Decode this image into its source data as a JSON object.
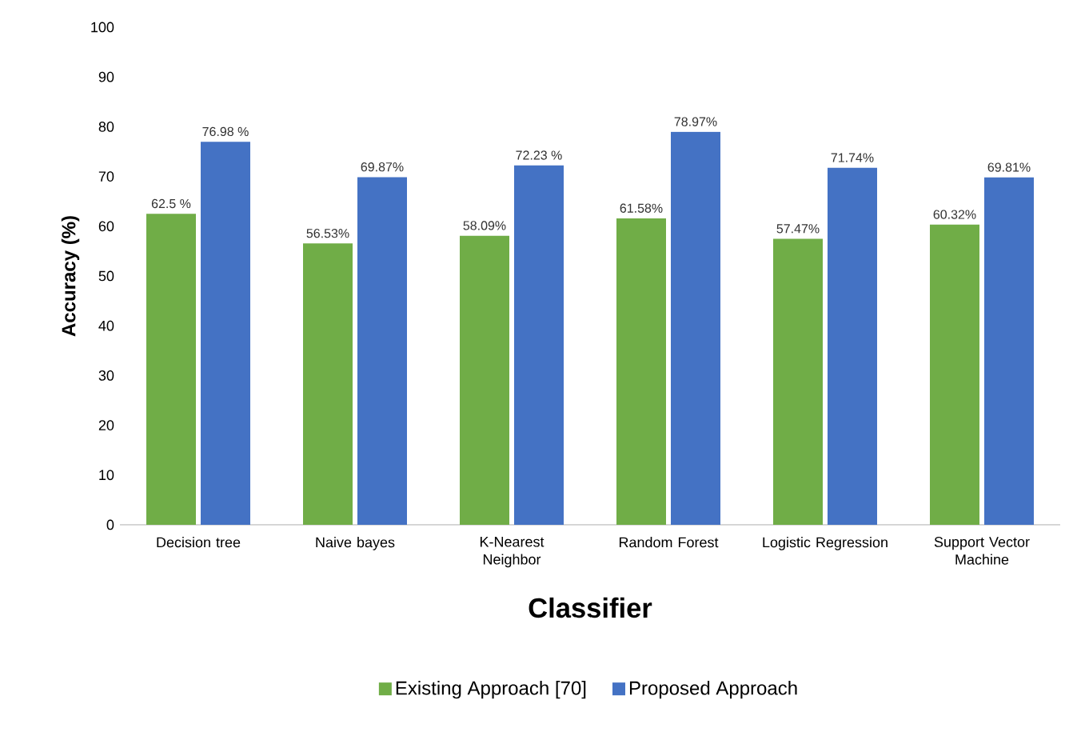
{
  "chart_data": {
    "type": "bar",
    "xlabel": "Classifier",
    "ylabel": "Accuracy (%)",
    "categories": [
      "Decision tree",
      "Naive bayes",
      "K-Nearest Neighbor",
      "Random Forest",
      "Logistic Regression",
      "Support Vector Machine"
    ],
    "series": [
      {
        "name": "Existing Approach [70]",
        "color": "#70ad47",
        "values": [
          62.5,
          56.53,
          58.09,
          61.58,
          57.47,
          60.32
        ],
        "value_labels": [
          "62.5 %",
          "56.53%",
          "58.09%",
          "61.58%",
          "57.47%",
          "60.32%"
        ]
      },
      {
        "name": "Proposed Approach",
        "color": "#4472c4",
        "values": [
          76.98,
          69.87,
          72.23,
          78.97,
          71.74,
          69.81
        ],
        "value_labels": [
          "76.98 %",
          "69.87%",
          "72.23 %",
          "78.97%",
          "71.74%",
          "69.81%"
        ]
      }
    ],
    "ylim": [
      0,
      100
    ],
    "yticks": [
      0,
      10,
      20,
      30,
      40,
      50,
      60,
      70,
      80,
      90,
      100
    ],
    "grid": false,
    "legend": "bottom"
  }
}
